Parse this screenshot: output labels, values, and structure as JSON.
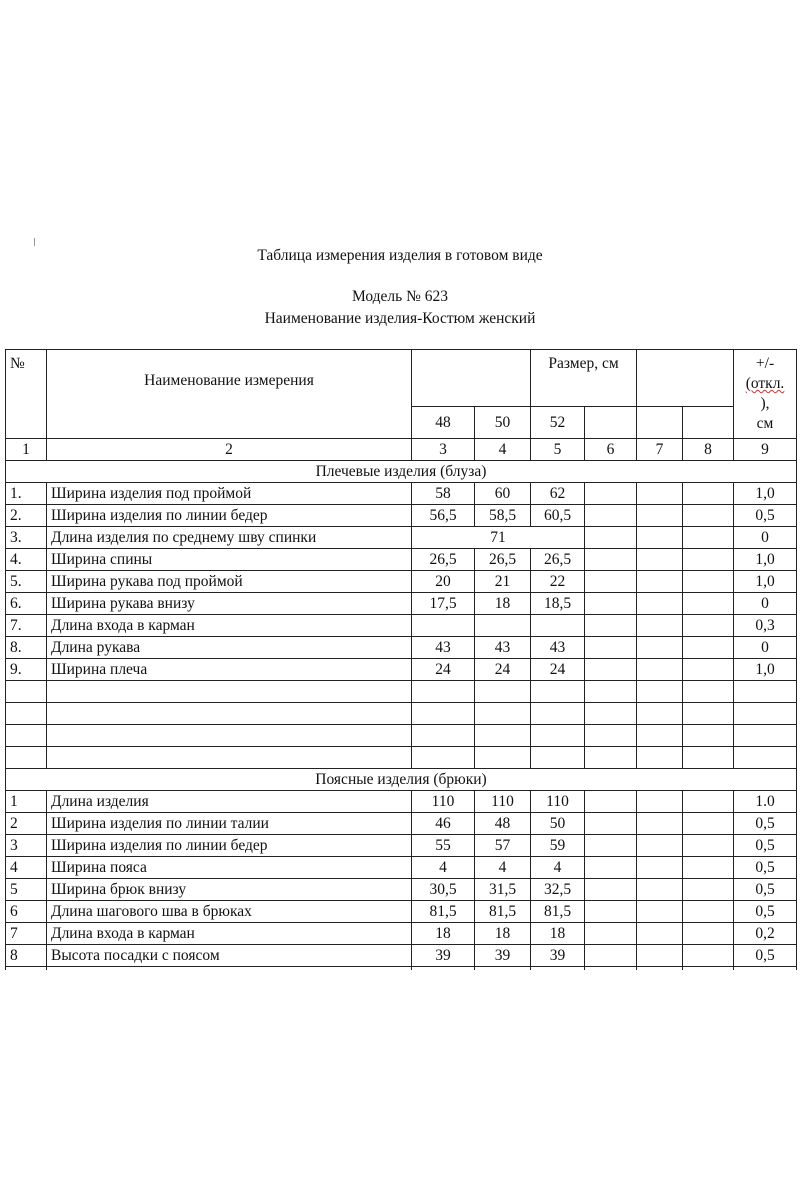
{
  "document": {
    "title": "Таблица измерения изделия в готовом виде",
    "model": "Модель № 623",
    "product_name": "Наименование изделия-Костюм женский"
  },
  "table": {
    "header": {
      "no": "№",
      "measurement": "Наименование измерения",
      "size": "Размер, см",
      "deviation_a": "+/-",
      "deviation_b": "(откл.",
      "deviation_c": "),",
      "deviation_d": "см",
      "sizes": [
        "48",
        "50",
        "52",
        "",
        "",
        ""
      ],
      "column_numbers": [
        "1",
        "2",
        "3",
        "4",
        "5",
        "6",
        "7",
        "8",
        "9"
      ]
    },
    "sections": [
      {
        "title": "Плечевые изделия (блуза)",
        "rows": [
          {
            "no": "1.",
            "name": "Ширина изделия под проймой",
            "values": [
              "58",
              "60",
              "62"
            ],
            "dev": "1,0"
          },
          {
            "no": "2.",
            "name": "Ширина изделия по линии бедер",
            "values": [
              "56,5",
              "58,5",
              "60,5"
            ],
            "dev": "0,5"
          },
          {
            "no": "3.",
            "name": "Длина изделия по среднему шву спинки",
            "span_value": "71",
            "dev": "0"
          },
          {
            "no": "4.",
            "name": "Ширина спины",
            "values": [
              "26,5",
              "26,5",
              "26,5"
            ],
            "dev": "1,0"
          },
          {
            "no": "5.",
            "name": "Ширина рукава под проймой",
            "values": [
              "20",
              "21",
              "22"
            ],
            "dev": "1,0"
          },
          {
            "no": "6.",
            "name": "Ширина рукава внизу",
            "values": [
              "17,5",
              "18",
              "18,5"
            ],
            "dev": "0"
          },
          {
            "no": "7.",
            "name": "Длина входа в карман",
            "values": [
              "",
              "",
              ""
            ],
            "dev": "0,3"
          },
          {
            "no": "8.",
            "name": "Длина рукава",
            "values": [
              "43",
              "43",
              "43"
            ],
            "dev": "0"
          },
          {
            "no": "9.",
            "name": "Ширина плеча",
            "values": [
              "24",
              "24",
              "24"
            ],
            "dev": "1,0"
          }
        ],
        "blank_rows": 4
      },
      {
        "title": "Поясные изделия (брюки)",
        "rows": [
          {
            "no": "1",
            "name": "Длина изделия",
            "values": [
              "110",
              "110",
              "110"
            ],
            "dev": "1.0"
          },
          {
            "no": "2",
            "name": "Ширина изделия по линии талии",
            "values": [
              "46",
              "48",
              "50"
            ],
            "dev": "0,5"
          },
          {
            "no": "3",
            "name": "Ширина изделия по линии бедер",
            "values": [
              "55",
              "57",
              "59"
            ],
            "dev": "0,5"
          },
          {
            "no": "4",
            "name": "Ширина пояса",
            "values": [
              "4",
              "4",
              "4"
            ],
            "dev": "0,5"
          },
          {
            "no": "5",
            "name": "Ширина брюк внизу",
            "values": [
              "30,5",
              "31,5",
              "32,5"
            ],
            "dev": "0,5"
          },
          {
            "no": "6",
            "name": "Длина шагового шва в брюках",
            "values": [
              "81,5",
              "81,5",
              "81,5"
            ],
            "dev": "0,5"
          },
          {
            "no": "7",
            "name": "Длина входа в карман",
            "values": [
              "18",
              "18",
              "18"
            ],
            "dev": "0,2"
          },
          {
            "no": "8",
            "name": "Высота посадки с поясом",
            "values": [
              "39",
              "39",
              "39"
            ],
            "dev": "0,5"
          }
        ],
        "blank_rows": 0
      }
    ]
  }
}
